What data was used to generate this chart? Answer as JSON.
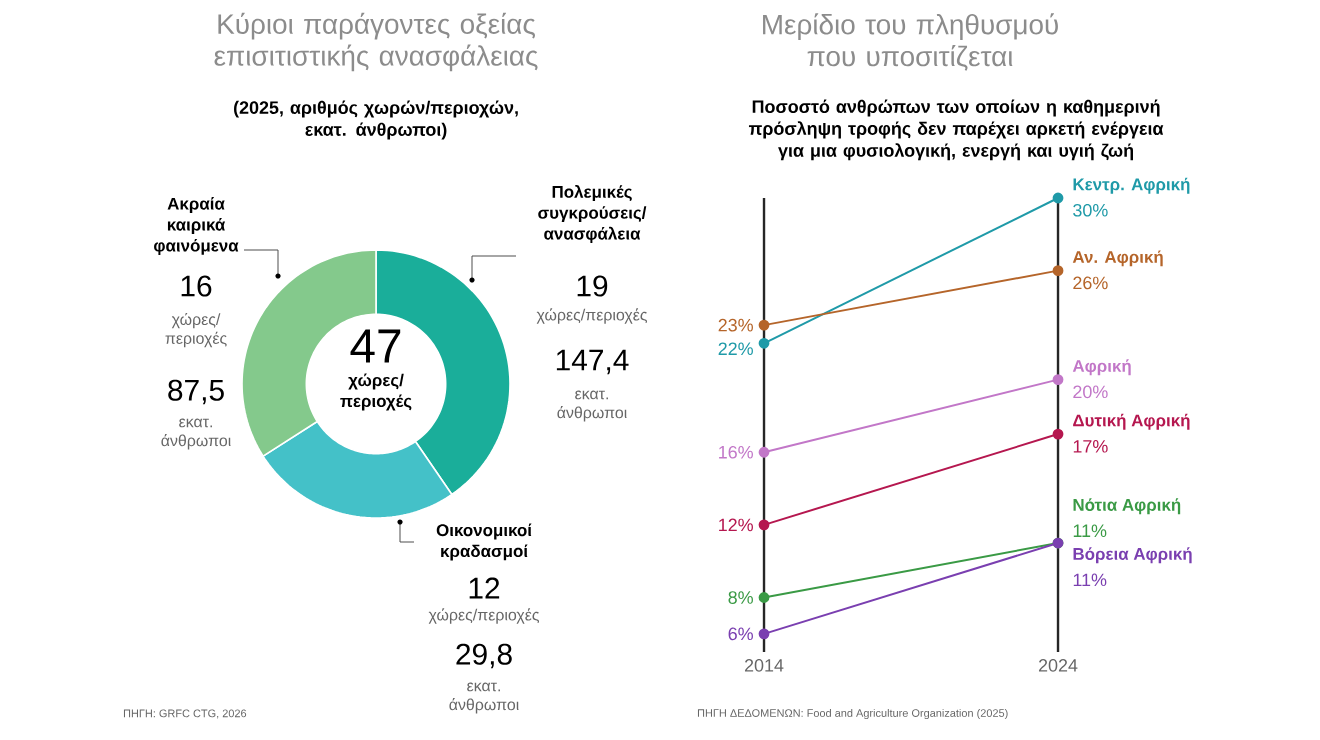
{
  "chart_data": [
    {
      "type": "donut",
      "title": "Κύριοι παράγοντες οξείας επισιτιστικής ανασφάλειας",
      "subtitle": "(2025, αριθμός χωρών/περιοχών, εκατ. άνθρωποι)",
      "categories": [
        "Πολεμικές συγκρούσεις/ ανασφάλεια",
        "Οικονομικοί κραδασμοί",
        "Ακραία καιρικά φαινόμενα"
      ],
      "values": [
        19,
        12,
        16
      ],
      "colors": [
        "#1aae9a",
        "#44c1c8",
        "#84c98c"
      ],
      "value_labels": [
        "19",
        "12",
        "16"
      ],
      "annotations": [
        "47",
        "χώρες/ περιοχές",
        "χώρες/περιοχές",
        "147,4",
        "εκατ. άνθρωποι",
        "χώρες/περιοχές",
        "29,8",
        "εκατ. άνθρωποι",
        "χώρες/ περιοχές",
        "87,5",
        "εκατ. άνθρωποι",
        "ΠΗΓΗ: GRFC CTG, 2026"
      ]
    },
    {
      "type": "line",
      "title": "Μερίδιο του πληθυσμού που υποσιτίζεται",
      "subtitle": "Ποσοστό ανθρώπων των οποίων η καθημερινή πρόσληψη τροφής δεν παρέχει αρκετή ενέργεια για μια φυσιολογική, ενεργή και υγιή ζωή",
      "x": [
        2014,
        2024
      ],
      "xlim": [
        2014,
        2024
      ],
      "xticks": [
        2014,
        2024
      ],
      "ylim": [
        5,
        30
      ],
      "tick_labels": "x",
      "grid": "x",
      "marker": "circle",
      "series": [
        {
          "name": "Κεντρ. Αφρική",
          "color": "#1f9aa8",
          "values": [
            22,
            30
          ],
          "value_labels": [
            "22%",
            "30%"
          ]
        },
        {
          "name": "Αν. Αφρική",
          "color": "#b5652a",
          "values": [
            23,
            26
          ],
          "value_labels": [
            "23%",
            "26%"
          ]
        },
        {
          "name": "Αφρική",
          "color": "#c277c8",
          "values": [
            16,
            20
          ],
          "value_labels": [
            "16%",
            "20%"
          ]
        },
        {
          "name": "Δυτική Αφρική",
          "color": "#b5174f",
          "values": [
            12,
            17
          ],
          "value_labels": [
            "12%",
            "17%"
          ]
        },
        {
          "name": "Νότια Αφρική",
          "color": "#3a9a45",
          "values": [
            8,
            11
          ],
          "value_labels": [
            "8%",
            "11%"
          ]
        },
        {
          "name": "Βόρεια Αφρική",
          "color": "#7a3fb0",
          "values": [
            6,
            11
          ],
          "value_labels": [
            "6%",
            "11%"
          ]
        }
      ],
      "annotations": [
        "ΠΗΓΗ ΔΕΔΟΜΕΝΩΝ: Food and Agriculture Organization (2025)"
      ]
    }
  ]
}
